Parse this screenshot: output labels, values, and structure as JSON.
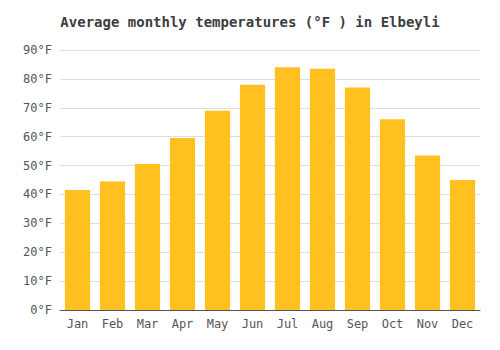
{
  "chart_data": {
    "type": "bar",
    "title": "Average monthly temperatures (°F ) in Elbeyli",
    "categories": [
      "Jan",
      "Feb",
      "Mar",
      "Apr",
      "May",
      "Jun",
      "Jul",
      "Aug",
      "Sep",
      "Oct",
      "Nov",
      "Dec"
    ],
    "values": [
      41.5,
      44.5,
      50.5,
      59.5,
      69.0,
      78.0,
      84.0,
      83.5,
      77.0,
      66.0,
      53.5,
      45.0
    ],
    "color": "#FFC020",
    "ylim": [
      0,
      90
    ],
    "yticks": [
      {
        "value": 0,
        "label": "0°F"
      },
      {
        "value": 10,
        "label": "10°F"
      },
      {
        "value": 20,
        "label": "20°F"
      },
      {
        "value": 30,
        "label": "30°F"
      },
      {
        "value": 40,
        "label": "40°F"
      },
      {
        "value": 50,
        "label": "50°F"
      },
      {
        "value": 60,
        "label": "60°F"
      },
      {
        "value": 70,
        "label": "70°F"
      },
      {
        "value": 80,
        "label": "80°F"
      },
      {
        "value": 90,
        "label": "90°F"
      }
    ],
    "grid": true
  }
}
